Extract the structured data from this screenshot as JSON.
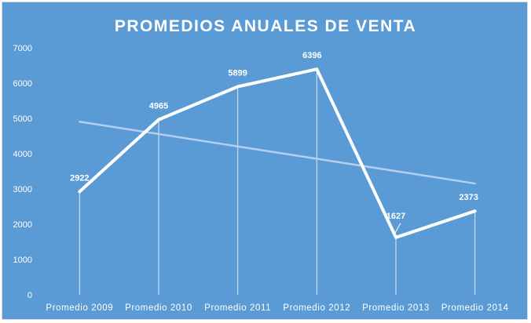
{
  "chart_data": {
    "type": "line",
    "title": "PROMEDIOS ANUALES DE VENTA",
    "xlabel": "",
    "ylabel": "",
    "categories": [
      "Promedio 2009",
      "Promedio 2010",
      "Promedio 2011",
      "Promedio 2012",
      "Promedio 2013",
      "Promedio 2014"
    ],
    "series": [
      {
        "values": [
          2922,
          4965,
          5899,
          6396,
          1627,
          2373
        ],
        "color": "#ffffff"
      }
    ],
    "trendline": {
      "type": "linear",
      "color": "#b4cfee"
    },
    "ylim": [
      0,
      7000
    ],
    "yticks": [
      "0",
      "1000",
      "2000",
      "3000",
      "4000",
      "5000",
      "6000",
      "7000"
    ],
    "data_labels": [
      "2922",
      "4965",
      "5899",
      "6396",
      "1627",
      "2373"
    ],
    "grid": false,
    "drop_lines": true,
    "legend": "none",
    "background_color": "#5b9bd5"
  }
}
